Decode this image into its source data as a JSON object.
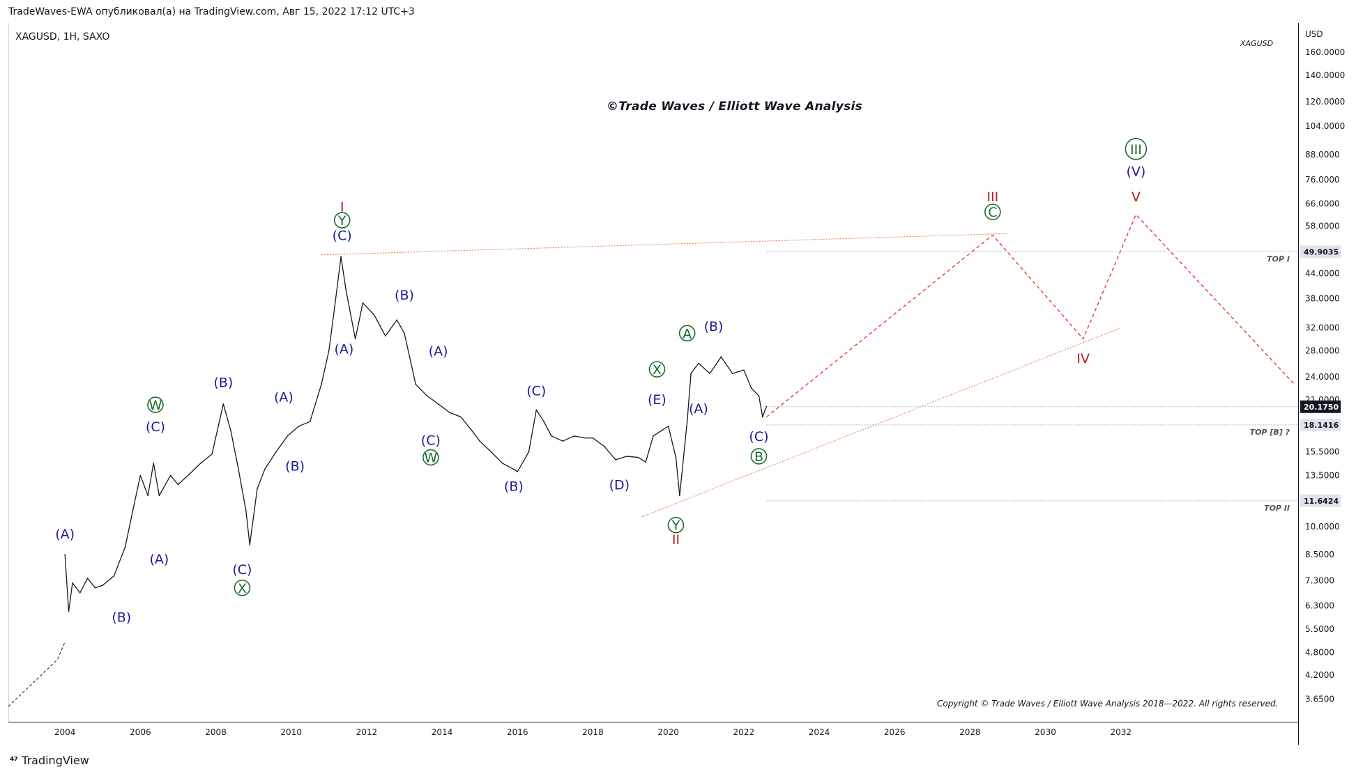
{
  "header": {
    "text": "TradeWaves-EWA опубликовал(а) на TradingView.com, Авг 15, 2022 17:12 UTC+3"
  },
  "symbol": {
    "text": "XAGUSD, 1H, SAXO"
  },
  "watermark_title": "©Trade Waves / Elliott Wave Analysis",
  "legend_label": "XAGUSD",
  "copyright": "Copyright © Trade Waves / Elliott Wave Analysis 2018—2022. All rights reserved.",
  "footer": {
    "brand": "TradingView"
  },
  "colors": {
    "blue": "#1a1a9c",
    "green": "#1b6b2b",
    "red": "#b71c1c",
    "orange": "#e07a3c",
    "dashed_red": "#e53935"
  },
  "chart_data": {
    "type": "line",
    "title": "",
    "xlabel": "",
    "ylabel": "",
    "unit": "USD",
    "yscale": "log",
    "ylim": [
      3.2,
      190
    ],
    "xlim": [
      2002.5,
      2036.7
    ],
    "grid": false,
    "x_ticks": [
      "2004",
      "2006",
      "2008",
      "2010",
      "2012",
      "2014",
      "2016",
      "2018",
      "2020",
      "2022",
      "2024",
      "2026",
      "2028",
      "2030",
      "2032"
    ],
    "y_ticks": [
      "160.0000",
      "140.0000",
      "120.0000",
      "104.0000",
      "88.0000",
      "76.0000",
      "66.0000",
      "58.0000",
      "44.0000",
      "38.0000",
      "32.0000",
      "28.0000",
      "24.0000",
      "21.0000",
      "15.5000",
      "13.5000",
      "10.0000",
      "8.5000",
      "7.3000",
      "6.3000",
      "5.5000",
      "4.8000",
      "4.2000",
      "3.6500"
    ],
    "price_levels": [
      {
        "value": "49.9035",
        "label": "TOP I",
        "numeric": 49.9,
        "style": "gray"
      },
      {
        "value": "20.1750",
        "label": "",
        "numeric": 20.175,
        "style": "dark"
      },
      {
        "value": "18.1416",
        "label": "TOP [B] ?",
        "numeric": 18.14,
        "style": "gray"
      },
      {
        "value": "11.6424",
        "label": "TOP II",
        "numeric": 11.64,
        "style": "gray"
      }
    ],
    "series": [
      {
        "name": "XAGUSD",
        "x": [
          2004.0,
          2004.1,
          2004.2,
          2004.4,
          2004.6,
          2004.8,
          2005.0,
          2005.3,
          2005.6,
          2005.8,
          2006.0,
          2006.2,
          2006.35,
          2006.5,
          2006.8,
          2007.0,
          2007.3,
          2007.6,
          2007.9,
          2008.2,
          2008.4,
          2008.6,
          2008.8,
          2008.9,
          2009.1,
          2009.3,
          2009.6,
          2009.9,
          2010.2,
          2010.5,
          2010.8,
          2011.0,
          2011.15,
          2011.32,
          2011.45,
          2011.7,
          2011.9,
          2012.2,
          2012.5,
          2012.8,
          2013.0,
          2013.3,
          2013.6,
          2013.9,
          2014.2,
          2014.5,
          2014.8,
          2015.0,
          2015.3,
          2015.6,
          2015.9,
          2016.0,
          2016.3,
          2016.5,
          2016.7,
          2016.9,
          2017.2,
          2017.5,
          2017.8,
          2018.0,
          2018.3,
          2018.6,
          2018.9,
          2019.2,
          2019.4,
          2019.6,
          2019.8,
          2020.0,
          2020.2,
          2020.3,
          2020.5,
          2020.6,
          2020.8,
          2021.1,
          2021.4,
          2021.7,
          2022.0,
          2022.2,
          2022.4,
          2022.5,
          2022.6
        ],
        "y": [
          8.5,
          6.1,
          7.2,
          6.8,
          7.4,
          7.0,
          7.1,
          7.5,
          8.9,
          11.0,
          13.5,
          12.0,
          14.5,
          12.0,
          13.5,
          12.8,
          13.6,
          14.5,
          15.3,
          20.5,
          17.5,
          14.0,
          11.0,
          9.0,
          12.5,
          14.0,
          15.5,
          17.0,
          18.0,
          18.5,
          23.0,
          28.0,
          36.0,
          48.5,
          40.0,
          30.0,
          37.0,
          34.5,
          30.5,
          33.5,
          31.0,
          23.0,
          21.5,
          20.5,
          19.5,
          19.0,
          17.5,
          16.5,
          15.5,
          14.5,
          14.0,
          13.8,
          15.5,
          19.8,
          18.5,
          17.0,
          16.5,
          17.0,
          16.8,
          16.8,
          16.0,
          14.8,
          15.1,
          15.0,
          14.6,
          17.0,
          17.5,
          18.0,
          15.0,
          12.0,
          18.5,
          24.5,
          26.0,
          24.5,
          27.0,
          24.5,
          25.0,
          22.5,
          21.5,
          19.0,
          20.2
        ]
      }
    ],
    "projection_red_dashed_x": [
      2022.6,
      2028.6,
      2031.0,
      2032.4,
      2037.0
    ],
    "projection_red_dashed_y": [
      19.0,
      55.0,
      30.0,
      62.0,
      23.0
    ],
    "early_dashed_x": [
      2002.5,
      2003.8,
      2004.0
    ],
    "early_dashed_y": [
      3.5,
      4.6,
      5.1
    ],
    "trend_lines": [
      {
        "name": "top-line",
        "x": [
          2010.8,
          2029.0
        ],
        "y": [
          49.0,
          55.5
        ],
        "style": "orange-dotted"
      },
      {
        "name": "bottom-line",
        "x": [
          2019.3,
          2032.0
        ],
        "y": [
          10.6,
          32.0
        ],
        "style": "orange-dotted"
      }
    ],
    "wave_labels": [
      {
        "text": "(A)",
        "x": 2004.0,
        "y": 9.6,
        "color": "blue"
      },
      {
        "text": "(B)",
        "x": 2005.5,
        "y": 5.9,
        "color": "blue"
      },
      {
        "text": "(A)",
        "x": 2006.5,
        "y": 8.3,
        "color": "blue"
      },
      {
        "text": "(C)",
        "x": 2006.4,
        "y": 18.0,
        "color": "blue"
      },
      {
        "text": "W",
        "x": 2006.4,
        "y": 20.4,
        "color": "green",
        "circled": true
      },
      {
        "text": "(B)",
        "x": 2008.2,
        "y": 23.3,
        "color": "blue"
      },
      {
        "text": "(C)",
        "x": 2008.7,
        "y": 7.8,
        "color": "blue"
      },
      {
        "text": "X",
        "x": 2008.7,
        "y": 7.0,
        "color": "green",
        "circled": true
      },
      {
        "text": "(A)",
        "x": 2009.8,
        "y": 21.4,
        "color": "blue"
      },
      {
        "text": "(B)",
        "x": 2010.1,
        "y": 14.3,
        "color": "blue"
      },
      {
        "text": "I",
        "x": 2011.35,
        "y": 65.0,
        "color": "red"
      },
      {
        "text": "Y",
        "x": 2011.35,
        "y": 60.0,
        "color": "green",
        "circled": true
      },
      {
        "text": "(C)",
        "x": 2011.35,
        "y": 55.0,
        "color": "blue"
      },
      {
        "text": "(A)",
        "x": 2011.4,
        "y": 28.3,
        "color": "blue"
      },
      {
        "text": "(B)",
        "x": 2013.0,
        "y": 38.8,
        "color": "blue"
      },
      {
        "text": "(A)",
        "x": 2013.9,
        "y": 28.0,
        "color": "blue"
      },
      {
        "text": "(C)",
        "x": 2013.7,
        "y": 16.6,
        "color": "blue"
      },
      {
        "text": "W",
        "x": 2013.7,
        "y": 15.0,
        "color": "green",
        "circled": true
      },
      {
        "text": "(C)",
        "x": 2016.5,
        "y": 22.2,
        "color": "blue"
      },
      {
        "text": "(B)",
        "x": 2015.9,
        "y": 12.7,
        "color": "blue"
      },
      {
        "text": "(D)",
        "x": 2018.7,
        "y": 12.8,
        "color": "blue"
      },
      {
        "text": "X",
        "x": 2019.7,
        "y": 25.1,
        "color": "green",
        "circled": true
      },
      {
        "text": "(E)",
        "x": 2019.7,
        "y": 21.1,
        "color": "blue"
      },
      {
        "text": "Y",
        "x": 2020.2,
        "y": 10.1,
        "color": "green",
        "circled": true
      },
      {
        "text": "II",
        "x": 2020.2,
        "y": 9.3,
        "color": "red"
      },
      {
        "text": "A",
        "x": 2020.5,
        "y": 31.0,
        "color": "green",
        "circled": true
      },
      {
        "text": "(B)",
        "x": 2021.2,
        "y": 32.3,
        "color": "blue"
      },
      {
        "text": "(A)",
        "x": 2020.8,
        "y": 20.0,
        "color": "blue"
      },
      {
        "text": "(C)",
        "x": 2022.4,
        "y": 17.0,
        "color": "blue"
      },
      {
        "text": "B",
        "x": 2022.4,
        "y": 15.1,
        "color": "green",
        "circled": true
      },
      {
        "text": "III",
        "x": 2028.6,
        "y": 69.0,
        "color": "red"
      },
      {
        "text": "C",
        "x": 2028.6,
        "y": 63.0,
        "color": "green",
        "circled": true
      },
      {
        "text": "IV",
        "x": 2031.0,
        "y": 26.8,
        "color": "red"
      },
      {
        "text": "III",
        "x": 2032.4,
        "y": 91.0,
        "color": "green",
        "circled": true
      },
      {
        "text": "(V)",
        "x": 2032.4,
        "y": 80.0,
        "color": "blue"
      },
      {
        "text": "V",
        "x": 2032.4,
        "y": 69.0,
        "color": "red"
      }
    ]
  }
}
